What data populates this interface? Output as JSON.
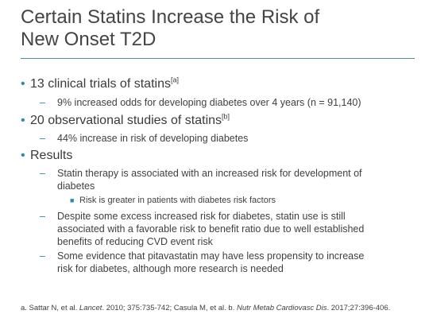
{
  "slide": {
    "title_line1": "Certain Statins Increase the Risk of",
    "title_line2": "New Onset T2D",
    "accent_color": "#2e8aa7",
    "rule_color": "#4a90a4"
  },
  "bullets": {
    "b1_text": "13 clinical trials of statins",
    "b1_sup": "[a]",
    "b1_sub1": "9% increased odds for developing diabetes over 4 years (n = 91,140)",
    "b2_text": "20 observational studies of statins",
    "b2_sup": "[b]",
    "b2_sub1": "44% increase in risk of developing diabetes",
    "b3_text": "Results",
    "b3_sub1_line1": "Statin therapy is associated with an increased risk for development of",
    "b3_sub1_line2": "diabetes",
    "b3_sub1_sub": "Risk is greater in patients with diabetes risk factors",
    "b3_sub2_line1": "Despite some excess increased risk for diabetes, statin use is still",
    "b3_sub2_line2": "associated with a favorable risk to benefit ratio due to well established",
    "b3_sub2_line3": "benefits of reducing CVD event risk",
    "b3_sub3_line1": "Some evidence that pitavastatin may have less propensity to increase",
    "b3_sub3_line2": "risk for diabetes, although more research is needed"
  },
  "footnote": {
    "part1": "a. Sattar N, et al. ",
    "journal1": "Lancet",
    "part2": ". 2010; 375:735-742; Casula M, et al.  b. ",
    "journal2": "Nutr Metab Cardiovasc Dis",
    "part3": ". 2017;27:396-406."
  },
  "glyphs": {
    "level1_bullet": "•",
    "level2_dash": "–",
    "level3_square": "■"
  }
}
